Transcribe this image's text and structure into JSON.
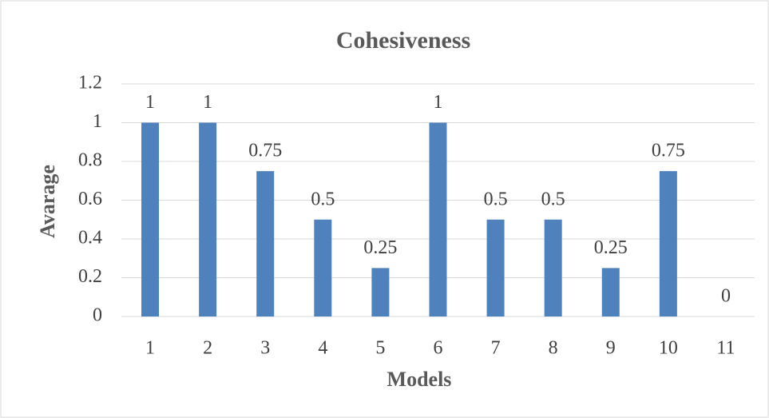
{
  "chart_data": {
    "type": "bar",
    "title": "Cohesiveness",
    "x_label": "Models",
    "y_label": "Avarage",
    "categories": [
      "1",
      "2",
      "3",
      "4",
      "5",
      "6",
      "7",
      "8",
      "9",
      "10",
      "11"
    ],
    "values": [
      1,
      1,
      0.75,
      0.5,
      0.25,
      1,
      0.5,
      0.5,
      0.25,
      0.75,
      0
    ],
    "color": "#4f81bd",
    "ylim": [
      0,
      1.2
    ],
    "yticks": [
      0,
      0.2,
      0.4,
      0.6,
      0.8,
      1,
      1.2
    ],
    "grid": true
  }
}
